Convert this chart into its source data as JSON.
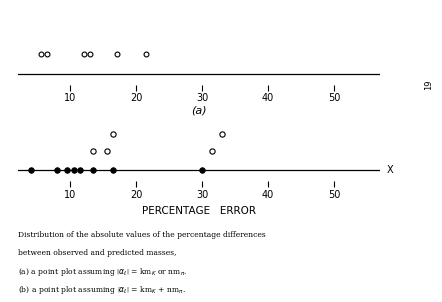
{
  "plot_a_open_points": [
    [
      5.5,
      0.6
    ],
    [
      6.5,
      0.6
    ],
    [
      12.0,
      0.6
    ],
    [
      13.0,
      0.6
    ],
    [
      17.0,
      0.6
    ],
    [
      21.5,
      0.6
    ]
  ],
  "plot_b_filled_points": [
    [
      4.0,
      0.0
    ],
    [
      8.0,
      0.0
    ],
    [
      9.5,
      0.0
    ],
    [
      10.5,
      0.0
    ],
    [
      11.5,
      0.0
    ],
    [
      13.5,
      0.0
    ],
    [
      16.5,
      0.0
    ],
    [
      30.0,
      0.0
    ]
  ],
  "plot_b_open_points_low": [
    [
      13.5,
      0.7
    ],
    [
      15.5,
      0.7
    ],
    [
      16.5,
      1.3
    ]
  ],
  "plot_b_open_points_high": [
    [
      31.5,
      0.7
    ],
    [
      33.0,
      1.3
    ]
  ],
  "xticks": [
    10,
    20,
    30,
    40,
    50
  ],
  "xlabel": "PERCENTAGE   ERROR",
  "label_a": "(a)",
  "xmin": 2,
  "xmax": 57,
  "background_color": "#ffffff",
  "page_number": "19"
}
